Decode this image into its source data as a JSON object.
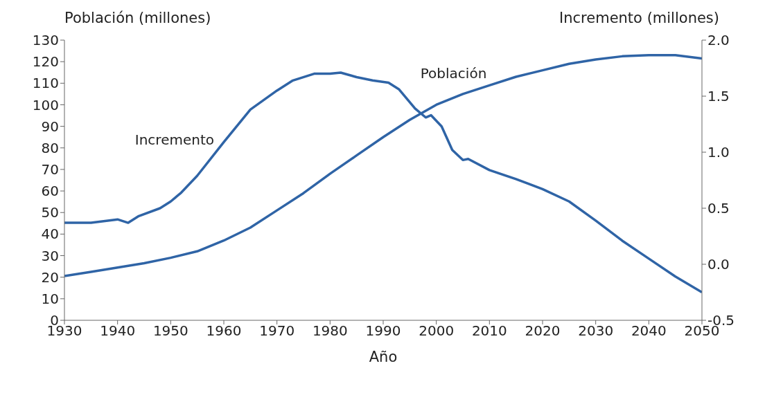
{
  "chart_data": {
    "type": "line",
    "xlabel": "Año",
    "ylabel": "Población (millones)",
    "y2label": "Incremento (millones)",
    "xlim": [
      1930,
      2050
    ],
    "xticks": [
      1930,
      1940,
      1950,
      1960,
      1970,
      1980,
      1990,
      2000,
      2010,
      2020,
      2030,
      2040,
      2050
    ],
    "ylim": [
      0,
      130
    ],
    "yticks": [
      0,
      10,
      20,
      30,
      40,
      50,
      60,
      70,
      80,
      90,
      100,
      110,
      120,
      130
    ],
    "y2lim": [
      -0.5,
      2.0
    ],
    "y2ticks": [
      -0.5,
      {
        "value": 0,
        "label": "0.0"
      },
      0.5,
      {
        "value": 1,
        "label": "1.0"
      },
      1.5,
      {
        "value": 2,
        "label": "2.0"
      }
    ],
    "grid": false,
    "legend": false,
    "marker": "none",
    "line_style": "solid",
    "series": [
      {
        "name": "Población",
        "color": "#2f64a6",
        "x": [
          1930,
          1935,
          1940,
          1945,
          1950,
          1955,
          1960,
          1965,
          1970,
          1975,
          1980,
          1985,
          1990,
          1995,
          2000,
          2005,
          2010,
          2015,
          2020,
          2025,
          2030,
          2035,
          2040,
          2045,
          2050
        ],
        "values": [
          20.5,
          22.5,
          24.5,
          26.5,
          29,
          32,
          37,
          43,
          51,
          59,
          68,
          76.5,
          85,
          93,
          100,
          105,
          109,
          113,
          116,
          119,
          121,
          122.5,
          123,
          123,
          121.5
        ]
      },
      {
        "name": "Incremento",
        "color": "#2f64a6",
        "axis": "y2",
        "x": [
          1930,
          1935,
          1940,
          1942,
          1944,
          1948,
          1950,
          1952,
          1955,
          1960,
          1965,
          1970,
          1973,
          1977,
          1980,
          1982,
          1985,
          1988,
          1991,
          1993,
          1996,
          1998,
          1999,
          2001,
          2003,
          2005,
          2006,
          2010,
          2015,
          2020,
          2025,
          2030,
          2035,
          2040,
          2045,
          2050
        ],
        "values": [
          0.37,
          0.37,
          0.4,
          0.37,
          0.43,
          0.5,
          0.56,
          0.64,
          0.79,
          1.09,
          1.38,
          1.55,
          1.64,
          1.7,
          1.7,
          1.71,
          1.67,
          1.64,
          1.62,
          1.56,
          1.39,
          1.31,
          1.33,
          1.23,
          1.02,
          0.93,
          0.94,
          0.84,
          0.76,
          0.67,
          0.56,
          0.39,
          0.21,
          0.05,
          -0.11,
          -0.25
        ]
      }
    ]
  }
}
